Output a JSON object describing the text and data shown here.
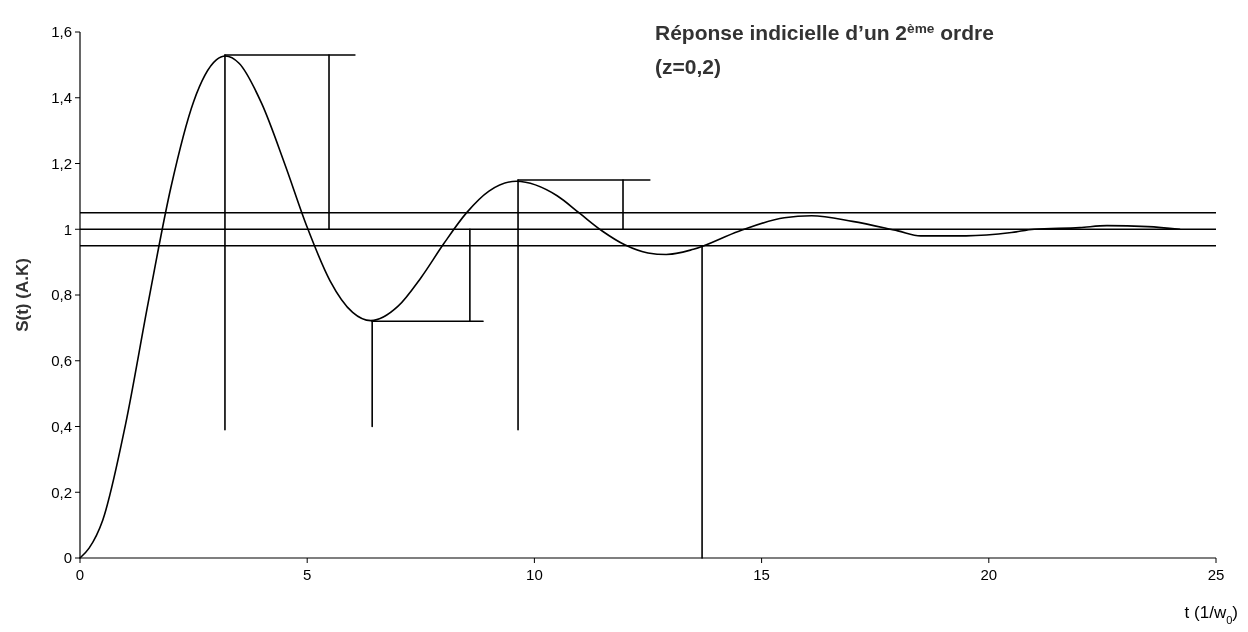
{
  "chart_data": {
    "type": "line",
    "title": "Réponse indicielle d’un 2$^{ème}$ ordre",
    "subtitle": "(z=0,2)",
    "xlabel": "t  (1/w$_{0}$)",
    "ylabel": "S(t)   (A.K)",
    "xlim": [
      0,
      25
    ],
    "xticks": [
      0,
      5,
      10,
      15,
      20,
      25
    ],
    "ylim": [
      0,
      1.6
    ],
    "yticks": [
      0,
      {
        "value": 0.2,
        "label": "0,2"
      },
      {
        "value": 0.4,
        "label": "0,4"
      },
      {
        "value": 0.6,
        "label": "0,6"
      },
      {
        "value": 0.8,
        "label": "0,8"
      },
      1,
      {
        "value": 1.2,
        "label": "1,2"
      },
      {
        "value": 1.4,
        "label": "1,4"
      },
      {
        "value": 1.6,
        "label": "1,6"
      }
    ],
    "marker": "none",
    "line_style": "solid",
    "ref_lines": [
      {
        "axis": "y",
        "value": 1.05,
        "color": "#000000"
      },
      {
        "axis": "y",
        "value": 1,
        "color": "#000000"
      },
      {
        "axis": "y",
        "value": 0.95,
        "color": "#000000"
      }
    ],
    "series": [
      {
        "color": "#000000",
        "x": [
          0,
          0.2,
          0.5,
          1,
          1.5,
          2,
          2.5,
          3,
          3.2,
          3.5,
          4,
          4.5,
          5,
          5.5,
          6,
          6.4,
          7,
          7.5,
          8,
          8.5,
          9,
          9.6,
          10.5,
          11,
          11.5,
          12,
          12.5,
          12.9,
          13.5,
          14.5,
          15.5,
          16.1,
          17,
          18,
          18.5,
          19.5,
          20.5,
          21,
          22,
          22.6,
          23.5,
          24.2
        ],
        "values": [
          0,
          0.03,
          0.115,
          0.405,
          0.776,
          1.127,
          1.388,
          1.515,
          1.527,
          1.505,
          1.382,
          1.201,
          1.006,
          0.844,
          0.747,
          0.722,
          0.766,
          0.852,
          0.955,
          1.049,
          1.116,
          1.146,
          1.102,
          1.048,
          0.994,
          0.952,
          0.928,
          0.923,
          0.939,
          0.994,
          1.035,
          1.041,
          1.024,
          0.995,
          0.98,
          0.98,
          0.99,
          1.0,
          1.005,
          1.011,
          1.008,
          1.0
        ]
      },
      {
        "type": "line",
        "color": "#000000",
        "x": [
          3.19,
          3.19
        ],
        "values": [
          0.39,
          1.53
        ]
      },
      {
        "type": "line",
        "color": "#000000",
        "x": [
          3.19,
          6.05
        ],
        "values": [
          1.53,
          1.53
        ]
      },
      {
        "type": "line",
        "color": "#000000",
        "x": [
          5.48,
          5.48
        ],
        "values": [
          1.0,
          1.53
        ]
      },
      {
        "type": "line",
        "color": "#000000",
        "x": [
          6.43,
          6.43
        ],
        "values": [
          0.4,
          0.72
        ]
      },
      {
        "type": "line",
        "color": "#000000",
        "x": [
          6.43,
          8.87
        ],
        "values": [
          0.72,
          0.72
        ]
      },
      {
        "type": "line",
        "color": "#000000",
        "x": [
          8.58,
          8.58
        ],
        "values": [
          0.72,
          1.0
        ]
      },
      {
        "type": "line",
        "color": "#000000",
        "x": [
          9.64,
          9.64
        ],
        "values": [
          0.39,
          1.15
        ]
      },
      {
        "type": "line",
        "color": "#000000",
        "x": [
          9.64,
          12.54
        ],
        "values": [
          1.15,
          1.15
        ]
      },
      {
        "type": "line",
        "color": "#000000",
        "x": [
          11.95,
          11.95
        ],
        "values": [
          1.0,
          1.15
        ]
      },
      {
        "type": "line",
        "color": "#000000",
        "x": [
          13.69,
          13.69
        ],
        "values": [
          0,
          0.95
        ]
      }
    ]
  }
}
